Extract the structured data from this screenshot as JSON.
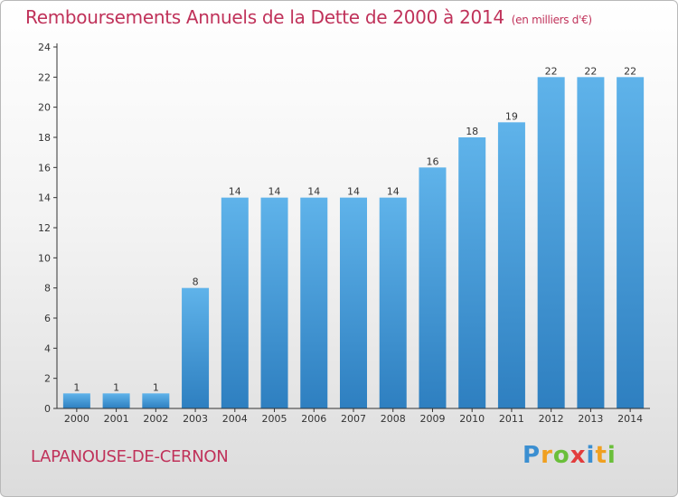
{
  "header": {
    "title": "Remboursements Annuels de la Dette de 2000 à 2014",
    "unit": "(en milliers d'€)"
  },
  "footer": {
    "commune": "LAPANOUSE-DE-CERNON",
    "logo_text": "Proxiti",
    "logo_letters": [
      "P",
      "r",
      "o",
      "x",
      "i",
      "t",
      "i"
    ],
    "logo_colors": [
      "#3b8fd1",
      "#f0a020",
      "#6abf3a",
      "#e23c3c",
      "#3b8fd1",
      "#f0a020",
      "#6abf3a"
    ]
  },
  "colors": {
    "bar_top": "#5fb3ea",
    "bar_bottom": "#2e7fc0",
    "text": "#c0325a",
    "axis": "#333333"
  },
  "chart_data": {
    "type": "bar",
    "title": "Remboursements Annuels de la Dette de 2000 à 2014",
    "xlabel": "",
    "ylabel": "",
    "categories": [
      "2000",
      "2001",
      "2002",
      "2003",
      "2004",
      "2005",
      "2006",
      "2007",
      "2008",
      "2009",
      "2010",
      "2011",
      "2012",
      "2013",
      "2014"
    ],
    "values": [
      1,
      1,
      1,
      8,
      14,
      14,
      14,
      14,
      14,
      16,
      18,
      19,
      22,
      22,
      22
    ],
    "ylim": [
      0,
      24
    ],
    "yticks": [
      0,
      2,
      4,
      6,
      8,
      10,
      12,
      14,
      16,
      18,
      20,
      22,
      24
    ],
    "grid": false,
    "data_labels": true
  }
}
